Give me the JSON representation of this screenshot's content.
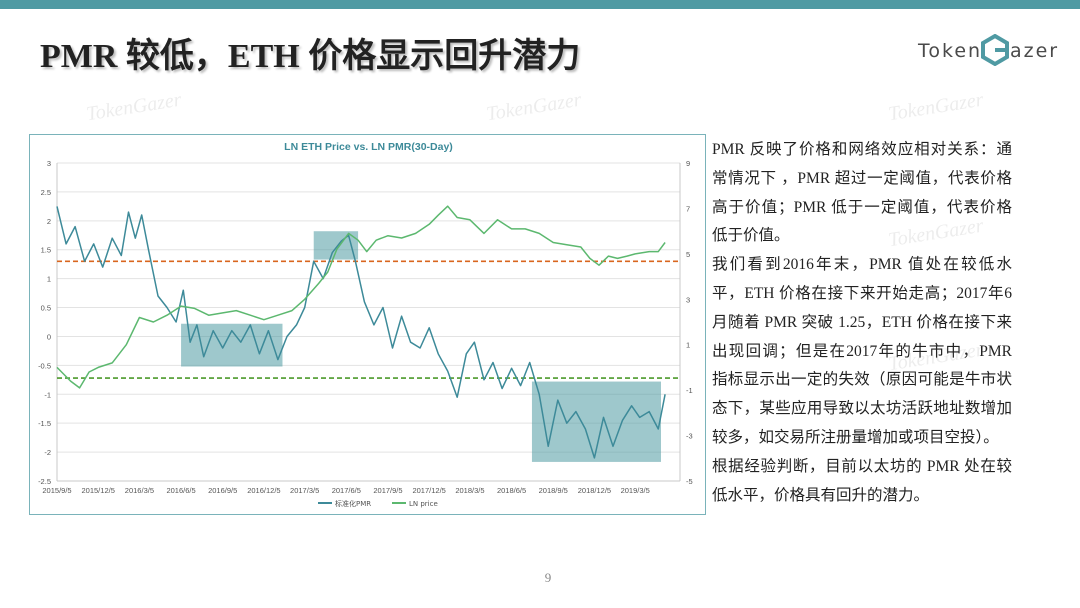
{
  "slide": {
    "title": "PMR 较低，ETH 价格显示回升潜力",
    "logo_left": "Token",
    "logo_right": "azer",
    "logo_mark": "G",
    "watermark": "TokenGazer",
    "page_number": "9",
    "accent_color": "#4f9aa3"
  },
  "body": {
    "paragraphs": [
      "PMR 反映了价格和网络效应相对关系：通常情况下 ，PMR 超过一定阈值，代表价格高于价值；PMR 低于一定阈值，代表价格低于价值。",
      "我们看到2016年末，PMR 值处在较低水平，ETH 价格在接下来开始走高；2017年6月随着 PMR 突破 1.25，ETH 价格在接下来出现回调；但是在2017年的牛市中，PMR 指标显示出一定的失效（原因可能是牛市状态下，某些应用导致以太坊活跃地址数增加较多，如交易所注册量增加或项目空投）。",
      "根据经验判断，目前以太坊的 PMR 处在较低水平，价格具有回升的潜力。"
    ]
  },
  "chart_data": {
    "type": "line",
    "title": "LN ETH Price vs. LN PMR(30-Day)",
    "x_tick_labels": [
      "2015/9/5",
      "2015/12/5",
      "2016/3/5",
      "2016/6/5",
      "2016/9/5",
      "2016/12/5",
      "2017/3/5",
      "2017/6/5",
      "2017/9/5",
      "2017/12/5",
      "2018/3/5",
      "2018/6/5",
      "2018/9/5",
      "2018/12/5",
      "2019/3/5"
    ],
    "y_left": {
      "range": [
        -2.5,
        3
      ],
      "ticks": [
        "3",
        "2.5",
        "2",
        "1.5",
        "1",
        "0.5",
        "0",
        "-0.5",
        "-1",
        "-1.5",
        "-2",
        "-2.5"
      ]
    },
    "y_right": {
      "range": [
        -5,
        9
      ],
      "ticks": [
        "9",
        "7",
        "5",
        "3",
        "1",
        "-1",
        "-3",
        "-5"
      ]
    },
    "grid": true,
    "legend_position": "bottom",
    "reference_lines": [
      {
        "axis": "left",
        "value": 1.3,
        "color": "#d9661f",
        "style": "dashed"
      },
      {
        "axis": "left",
        "value": -0.72,
        "color": "#4c9a2a",
        "style": "dashed"
      }
    ],
    "highlight_boxes": [
      {
        "x_range": [
          "2016/6/5",
          "2017/1/15"
        ],
        "y_range": [
          -0.52,
          0.22
        ]
      },
      {
        "x_range": [
          "2017/3/25",
          "2017/7/1"
        ],
        "y_range": [
          1.33,
          1.82
        ]
      },
      {
        "x_range": [
          "2018/7/20",
          "2019/5/1"
        ],
        "y_range": [
          -2.17,
          -0.78
        ]
      }
    ],
    "series": [
      {
        "name": "标准化PMR",
        "axis": "left",
        "color": "#3d8a99",
        "points": [
          [
            "2015/9/5",
            2.25
          ],
          [
            "2015/9/25",
            1.6
          ],
          [
            "2015/10/15",
            1.9
          ],
          [
            "2015/11/5",
            1.3
          ],
          [
            "2015/11/25",
            1.6
          ],
          [
            "2015/12/15",
            1.2
          ],
          [
            "2016/1/5",
            1.7
          ],
          [
            "2016/1/25",
            1.4
          ],
          [
            "2016/2/10",
            2.15
          ],
          [
            "2016/2/25",
            1.7
          ],
          [
            "2016/3/10",
            2.1
          ],
          [
            "2016/3/25",
            1.5
          ],
          [
            "2016/4/15",
            0.7
          ],
          [
            "2016/5/5",
            0.5
          ],
          [
            "2016/5/25",
            0.25
          ],
          [
            "2016/6/10",
            0.8
          ],
          [
            "2016/6/25",
            -0.1
          ],
          [
            "2016/7/10",
            0.2
          ],
          [
            "2016/7/25",
            -0.35
          ],
          [
            "2016/8/15",
            0.1
          ],
          [
            "2016/9/5",
            -0.2
          ],
          [
            "2016/9/25",
            0.1
          ],
          [
            "2016/10/15",
            -0.1
          ],
          [
            "2016/11/5",
            0.2
          ],
          [
            "2016/11/25",
            -0.3
          ],
          [
            "2016/12/15",
            0.1
          ],
          [
            "2017/1/5",
            -0.4
          ],
          [
            "2017/1/25",
            0.0
          ],
          [
            "2017/2/15",
            0.2
          ],
          [
            "2017/3/5",
            0.5
          ],
          [
            "2017/3/25",
            1.3
          ],
          [
            "2017/4/15",
            1.0
          ],
          [
            "2017/5/5",
            1.45
          ],
          [
            "2017/5/25",
            1.65
          ],
          [
            "2017/6/10",
            1.75
          ],
          [
            "2017/6/25",
            1.3
          ],
          [
            "2017/7/15",
            0.6
          ],
          [
            "2017/8/5",
            0.2
          ],
          [
            "2017/8/25",
            0.5
          ],
          [
            "2017/9/15",
            -0.2
          ],
          [
            "2017/10/5",
            0.35
          ],
          [
            "2017/10/25",
            -0.1
          ],
          [
            "2017/11/15",
            -0.2
          ],
          [
            "2017/12/5",
            0.15
          ],
          [
            "2017/12/25",
            -0.3
          ],
          [
            "2018/1/15",
            -0.6
          ],
          [
            "2018/2/5",
            -1.05
          ],
          [
            "2018/2/25",
            -0.3
          ],
          [
            "2018/3/15",
            -0.1
          ],
          [
            "2018/4/5",
            -0.75
          ],
          [
            "2018/4/25",
            -0.45
          ],
          [
            "2018/5/15",
            -0.9
          ],
          [
            "2018/6/5",
            -0.55
          ],
          [
            "2018/6/25",
            -0.85
          ],
          [
            "2018/7/15",
            -0.45
          ],
          [
            "2018/8/5",
            -1.0
          ],
          [
            "2018/8/25",
            -1.9
          ],
          [
            "2018/9/15",
            -1.1
          ],
          [
            "2018/10/5",
            -1.5
          ],
          [
            "2018/10/25",
            -1.3
          ],
          [
            "2018/11/15",
            -1.6
          ],
          [
            "2018/12/5",
            -2.1
          ],
          [
            "2018/12/25",
            -1.4
          ],
          [
            "2019/1/15",
            -1.9
          ],
          [
            "2019/2/5",
            -1.45
          ],
          [
            "2019/2/25",
            -1.2
          ],
          [
            "2019/3/15",
            -1.4
          ],
          [
            "2019/4/5",
            -1.3
          ],
          [
            "2019/4/25",
            -1.6
          ],
          [
            "2019/5/10",
            -1.0
          ]
        ]
      },
      {
        "name": "LN price",
        "axis": "right",
        "color": "#5cb86f",
        "points": [
          [
            "2015/9/5",
            0.0
          ],
          [
            "2015/10/5",
            -0.6
          ],
          [
            "2015/10/25",
            -0.9
          ],
          [
            "2015/11/15",
            -0.2
          ],
          [
            "2015/12/5",
            0.0
          ],
          [
            "2016/1/5",
            0.2
          ],
          [
            "2016/2/5",
            1.0
          ],
          [
            "2016/3/5",
            2.2
          ],
          [
            "2016/4/5",
            2.0
          ],
          [
            "2016/5/5",
            2.3
          ],
          [
            "2016/6/5",
            2.7
          ],
          [
            "2016/7/5",
            2.6
          ],
          [
            "2016/8/5",
            2.3
          ],
          [
            "2016/9/5",
            2.4
          ],
          [
            "2016/10/5",
            2.5
          ],
          [
            "2016/11/5",
            2.3
          ],
          [
            "2016/12/5",
            2.1
          ],
          [
            "2017/1/5",
            2.3
          ],
          [
            "2017/2/5",
            2.5
          ],
          [
            "2017/3/5",
            3.0
          ],
          [
            "2017/4/5",
            3.7
          ],
          [
            "2017/4/25",
            4.2
          ],
          [
            "2017/5/15",
            5.2
          ],
          [
            "2017/6/10",
            5.9
          ],
          [
            "2017/7/1",
            5.6
          ],
          [
            "2017/7/20",
            5.1
          ],
          [
            "2017/8/10",
            5.6
          ],
          [
            "2017/9/5",
            5.8
          ],
          [
            "2017/10/5",
            5.7
          ],
          [
            "2017/11/5",
            5.9
          ],
          [
            "2017/12/5",
            6.3
          ],
          [
            "2017/12/25",
            6.7
          ],
          [
            "2018/1/15",
            7.1
          ],
          [
            "2018/2/5",
            6.6
          ],
          [
            "2018/3/5",
            6.5
          ],
          [
            "2018/4/5",
            5.9
          ],
          [
            "2018/5/5",
            6.5
          ],
          [
            "2018/6/5",
            6.1
          ],
          [
            "2018/7/5",
            6.1
          ],
          [
            "2018/8/5",
            5.9
          ],
          [
            "2018/9/5",
            5.5
          ],
          [
            "2018/10/5",
            5.4
          ],
          [
            "2018/11/5",
            5.3
          ],
          [
            "2018/11/25",
            4.8
          ],
          [
            "2018/12/15",
            4.5
          ],
          [
            "2019/1/5",
            4.9
          ],
          [
            "2019/1/25",
            4.8
          ],
          [
            "2019/2/15",
            4.9
          ],
          [
            "2019/3/5",
            5.0
          ],
          [
            "2019/4/5",
            5.1
          ],
          [
            "2019/4/25",
            5.1
          ],
          [
            "2019/5/10",
            5.5
          ]
        ]
      }
    ]
  }
}
